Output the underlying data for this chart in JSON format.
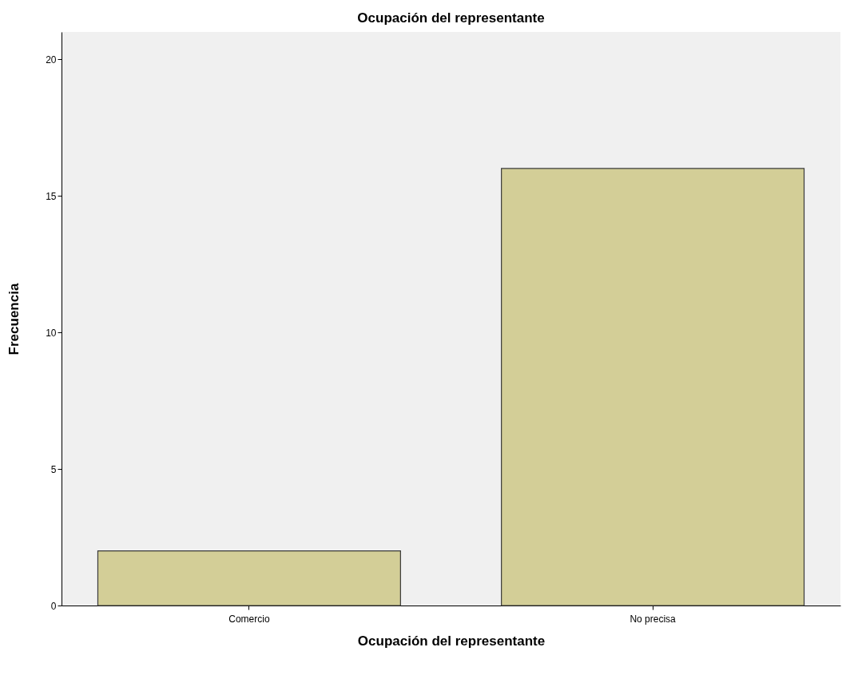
{
  "chart_data": {
    "type": "bar",
    "title": "Ocupación del representante",
    "xlabel": "Ocupación del representante",
    "ylabel": "Frecuencia",
    "categories": [
      "Comercio",
      "No precisa"
    ],
    "values": [
      2,
      16
    ],
    "color": "#d3ce97",
    "ylim": [
      0,
      21
    ],
    "yticks": [
      0,
      5,
      10,
      15,
      20
    ],
    "grid": false
  }
}
